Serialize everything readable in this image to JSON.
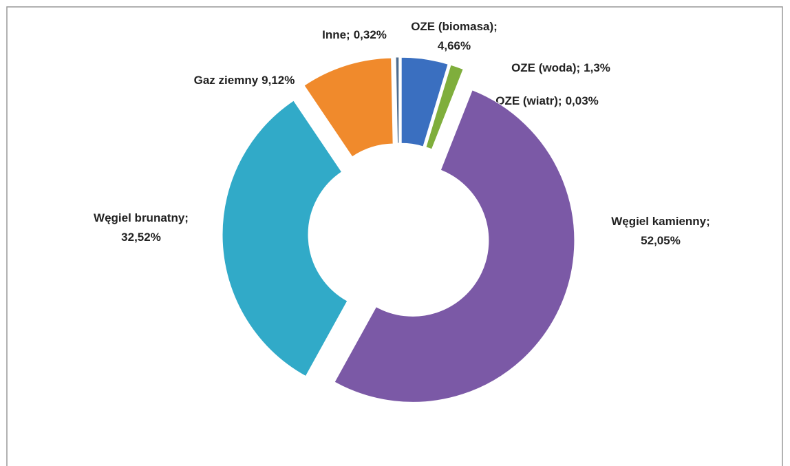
{
  "chart_data": {
    "type": "donut",
    "categories": [
      "OZE (biomasa);",
      "OZE (woda);",
      "OZE (wiatr);",
      "Węgiel kamienny;",
      "Węgiel brunatny;",
      "Gaz ziemny",
      "Inne;"
    ],
    "values": [
      4.66,
      1.3,
      0.03,
      52.05,
      32.52,
      9.12,
      0.32
    ],
    "value_labels": [
      "4,66%",
      "1,3%",
      "0,03%",
      "52,05%",
      "32,52%",
      "9,12%",
      "0,32%"
    ],
    "colors": [
      "#3a6fc0",
      "#7fae3c",
      "#c0504d",
      "#7b59a6",
      "#31aac8",
      "#f08a2c",
      "#4f6d8f"
    ]
  }
}
